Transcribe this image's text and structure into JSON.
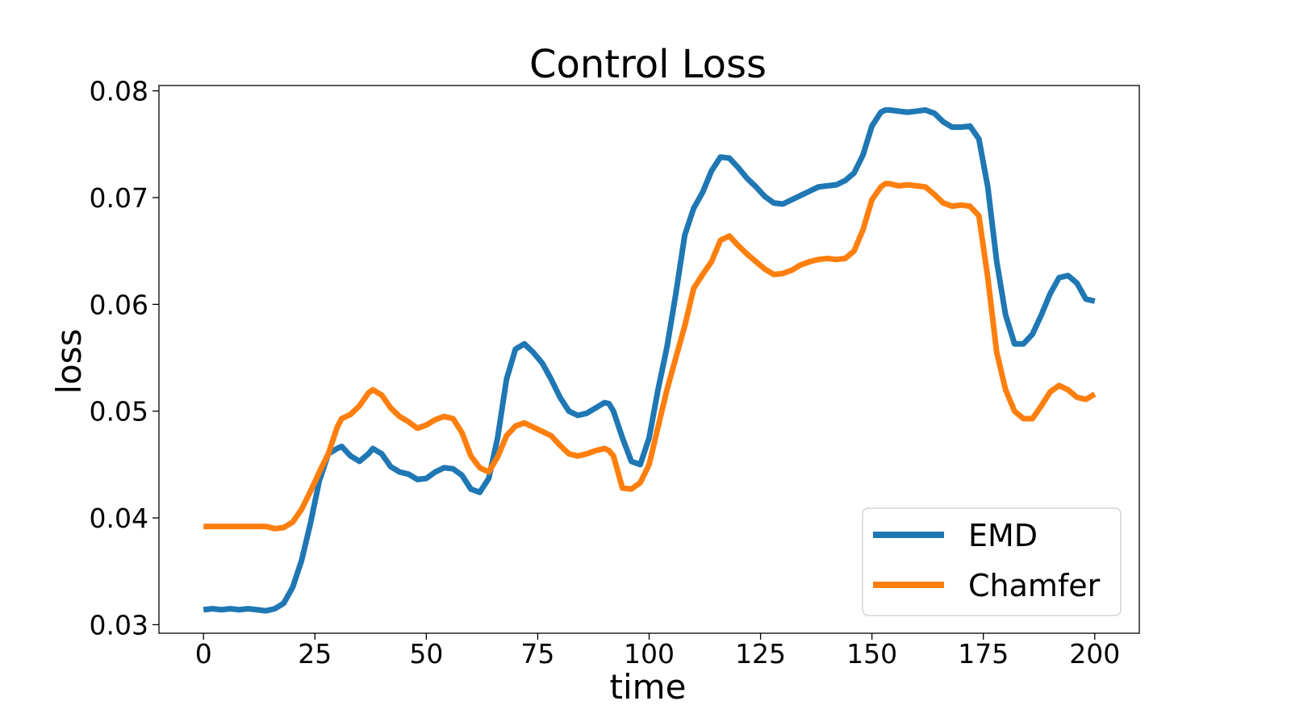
{
  "chart_data": {
    "type": "line",
    "title": "Control Loss",
    "xlabel": "time",
    "ylabel": "loss",
    "xlim": [
      -10,
      210
    ],
    "ylim": [
      0.0292,
      0.0805
    ],
    "xticks": [
      0,
      25,
      50,
      75,
      100,
      125,
      150,
      175,
      200
    ],
    "xtick_labels": [
      "0",
      "25",
      "50",
      "75",
      "100",
      "125",
      "150",
      "175",
      "200"
    ],
    "yticks": [
      0.03,
      0.04,
      0.05,
      0.06,
      0.07,
      0.08
    ],
    "ytick_labels": [
      "0.03",
      "0.04",
      "0.05",
      "0.06",
      "0.07",
      "0.08"
    ],
    "grid": false,
    "legend_position": "bottom-right",
    "x": [
      0,
      2,
      4,
      6,
      8,
      10,
      12,
      14,
      16,
      18,
      20,
      22,
      24,
      26,
      28,
      30,
      31,
      33,
      35,
      37,
      38,
      40,
      42,
      44,
      46,
      48,
      50,
      52,
      54,
      56,
      58,
      60,
      62,
      64,
      66,
      68,
      70,
      72,
      74,
      76,
      78,
      80,
      82,
      84,
      86,
      88,
      90,
      91,
      92,
      94,
      96,
      98,
      100,
      102,
      104,
      106,
      108,
      110,
      112,
      114,
      116,
      118,
      120,
      122,
      124,
      126,
      128,
      130,
      132,
      134,
      136,
      138,
      140,
      142,
      144,
      146,
      148,
      150,
      152,
      153,
      154,
      156,
      158,
      160,
      162,
      164,
      166,
      168,
      170,
      172,
      174,
      176,
      178,
      180,
      182,
      184,
      186,
      188,
      190,
      192,
      194,
      196,
      198,
      200
    ],
    "series": [
      {
        "name": "EMD",
        "color": "#1f77b4",
        "values": [
          0.0314,
          0.0315,
          0.0314,
          0.0315,
          0.0314,
          0.0315,
          0.0314,
          0.0313,
          0.0315,
          0.032,
          0.0335,
          0.036,
          0.0395,
          0.0435,
          0.046,
          0.0465,
          0.0467,
          0.0458,
          0.0453,
          0.046,
          0.0465,
          0.046,
          0.0448,
          0.0443,
          0.0441,
          0.0436,
          0.0437,
          0.0443,
          0.0447,
          0.0446,
          0.044,
          0.0427,
          0.0424,
          0.0437,
          0.0475,
          0.053,
          0.0558,
          0.0563,
          0.0555,
          0.0545,
          0.053,
          0.0513,
          0.05,
          0.0496,
          0.0498,
          0.0503,
          0.0508,
          0.0507,
          0.05,
          0.0475,
          0.0453,
          0.045,
          0.0475,
          0.052,
          0.056,
          0.061,
          0.0665,
          0.069,
          0.0705,
          0.0725,
          0.0738,
          0.0737,
          0.0728,
          0.0718,
          0.071,
          0.0701,
          0.0695,
          0.0694,
          0.0698,
          0.0702,
          0.0706,
          0.071,
          0.0711,
          0.0712,
          0.0716,
          0.0723,
          0.074,
          0.0767,
          0.078,
          0.0782,
          0.0782,
          0.0781,
          0.078,
          0.0781,
          0.0782,
          0.0779,
          0.0771,
          0.0766,
          0.0766,
          0.0767,
          0.0755,
          0.071,
          0.064,
          0.059,
          0.0563,
          0.0563,
          0.0572,
          0.059,
          0.061,
          0.0625,
          0.0627,
          0.062,
          0.0605,
          0.0603
        ]
      },
      {
        "name": "Chamfer",
        "color": "#ff7f0e",
        "values": [
          0.0392,
          0.0392,
          0.0392,
          0.0392,
          0.0392,
          0.0392,
          0.0392,
          0.0392,
          0.039,
          0.0391,
          0.0396,
          0.0408,
          0.0425,
          0.0443,
          0.046,
          0.0485,
          0.0493,
          0.0497,
          0.0505,
          0.0517,
          0.052,
          0.0515,
          0.0503,
          0.0495,
          0.049,
          0.0484,
          0.0487,
          0.0492,
          0.0495,
          0.0493,
          0.048,
          0.0458,
          0.0447,
          0.0443,
          0.0457,
          0.0477,
          0.0486,
          0.0489,
          0.0485,
          0.0481,
          0.0477,
          0.0468,
          0.046,
          0.0458,
          0.046,
          0.0463,
          0.0465,
          0.0463,
          0.0458,
          0.0428,
          0.0427,
          0.0433,
          0.045,
          0.0485,
          0.052,
          0.055,
          0.058,
          0.0615,
          0.0628,
          0.064,
          0.066,
          0.0664,
          0.0655,
          0.0647,
          0.064,
          0.0633,
          0.0628,
          0.0629,
          0.0632,
          0.0637,
          0.064,
          0.0642,
          0.0643,
          0.0642,
          0.0643,
          0.065,
          0.067,
          0.0698,
          0.071,
          0.0713,
          0.0713,
          0.0711,
          0.0712,
          0.0711,
          0.071,
          0.0703,
          0.0695,
          0.0692,
          0.0693,
          0.0692,
          0.0683,
          0.0625,
          0.0555,
          0.052,
          0.05,
          0.0493,
          0.0493,
          0.0505,
          0.0518,
          0.0524,
          0.052,
          0.0513,
          0.0511,
          0.0516
        ]
      }
    ]
  }
}
